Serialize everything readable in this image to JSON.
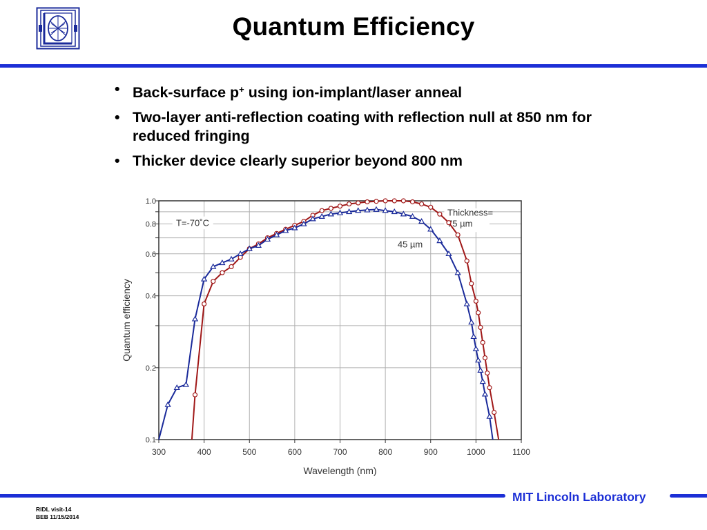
{
  "header": {
    "title": "Quantum Efficiency"
  },
  "bullets": [
    {
      "text": "Back-surface p",
      "sup": "+",
      "rest": " using ion-implant/laser anneal"
    },
    {
      "text": "Two-layer anti-reflection coating with reflection null at 850 nm for reduced fringing"
    },
    {
      "text": "Thicker device clearly superior beyond 800 nm"
    }
  ],
  "chart_data": {
    "type": "line",
    "title": "",
    "xlabel": "Wavelength (nm)",
    "ylabel": "Quantum efficiency",
    "xlim": [
      300,
      1100
    ],
    "ylim": [
      0.1,
      1.0
    ],
    "y_scale": "log",
    "x_ticks": [
      300,
      400,
      500,
      600,
      700,
      800,
      900,
      1000,
      1100
    ],
    "y_ticks": [
      0.1,
      0.2,
      0.4,
      0.6,
      0.8,
      1.0
    ],
    "y_tick_labels": [
      "0.1",
      "0.2",
      "0.4",
      "0.6",
      "0.8",
      "1.0"
    ],
    "grid": true,
    "annotations": {
      "temperature": "T=-70˚C",
      "thickness_line1": "Thickness=",
      "thickness_line2": "75 µm",
      "thin_label": "45 µm"
    },
    "colors": {
      "series_75": "#a01818",
      "series_45": "#1a2a9a",
      "grid": "#b0b0b0"
    },
    "series": [
      {
        "name": "75 µm",
        "marker": "circle",
        "x": [
          373,
          380,
          400,
          420,
          440,
          460,
          480,
          500,
          520,
          540,
          560,
          580,
          600,
          620,
          640,
          660,
          680,
          700,
          720,
          740,
          760,
          780,
          800,
          820,
          840,
          860,
          880,
          900,
          920,
          940,
          960,
          980,
          990,
          1000,
          1005,
          1010,
          1015,
          1020,
          1025,
          1030,
          1040,
          1050
        ],
        "y": [
          0.1,
          0.154,
          0.37,
          0.46,
          0.5,
          0.53,
          0.58,
          0.63,
          0.66,
          0.7,
          0.73,
          0.76,
          0.79,
          0.82,
          0.87,
          0.91,
          0.93,
          0.95,
          0.97,
          0.98,
          0.99,
          0.995,
          1.0,
          1.0,
          1.0,
          0.99,
          0.97,
          0.94,
          0.88,
          0.81,
          0.72,
          0.56,
          0.45,
          0.38,
          0.34,
          0.295,
          0.255,
          0.22,
          0.19,
          0.165,
          0.13,
          0.1
        ]
      },
      {
        "name": "45 µm",
        "marker": "triangle",
        "x": [
          300,
          320,
          340,
          360,
          380,
          400,
          420,
          440,
          460,
          480,
          500,
          520,
          540,
          560,
          580,
          600,
          620,
          640,
          660,
          680,
          700,
          720,
          740,
          760,
          780,
          800,
          820,
          840,
          860,
          880,
          900,
          920,
          940,
          960,
          980,
          990,
          995,
          1000,
          1005,
          1010,
          1015,
          1020,
          1030,
          1037
        ],
        "y": [
          0.1,
          0.14,
          0.165,
          0.17,
          0.32,
          0.47,
          0.53,
          0.55,
          0.57,
          0.6,
          0.63,
          0.65,
          0.69,
          0.72,
          0.75,
          0.77,
          0.8,
          0.84,
          0.86,
          0.88,
          0.89,
          0.9,
          0.91,
          0.915,
          0.92,
          0.91,
          0.9,
          0.88,
          0.86,
          0.82,
          0.76,
          0.68,
          0.6,
          0.5,
          0.37,
          0.31,
          0.27,
          0.24,
          0.215,
          0.195,
          0.175,
          0.155,
          0.125,
          0.1
        ]
      }
    ]
  },
  "footer": {
    "lab": "MIT Lincoln Laboratory",
    "meta_line1": "RIDL visit-14",
    "meta_line2": "BEB 11/15/2014"
  }
}
